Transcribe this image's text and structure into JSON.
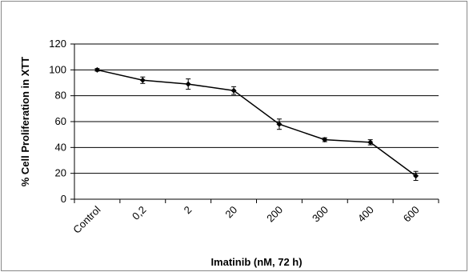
{
  "chart_data": {
    "type": "line",
    "title": "",
    "xlabel": "Imatinib (nM, 72 h)",
    "ylabel": "% Cell Proliferation in XTT",
    "categories": [
      "Control",
      "0,2",
      "2",
      "20",
      "200",
      "300",
      "400",
      "600"
    ],
    "series": [
      {
        "values": [
          100,
          92,
          89,
          84,
          58,
          46,
          44,
          18
        ],
        "errors": [
          1,
          2.5,
          4,
          3,
          4,
          1.5,
          2,
          3.5
        ]
      }
    ],
    "ylim": [
      0,
      120
    ],
    "yticks": [
      0,
      20,
      40,
      60,
      80,
      100,
      120
    ],
    "grid": true,
    "legend": "none",
    "colors": {
      "line": "#000000",
      "grid": "#000000",
      "axis": "#000000"
    }
  }
}
